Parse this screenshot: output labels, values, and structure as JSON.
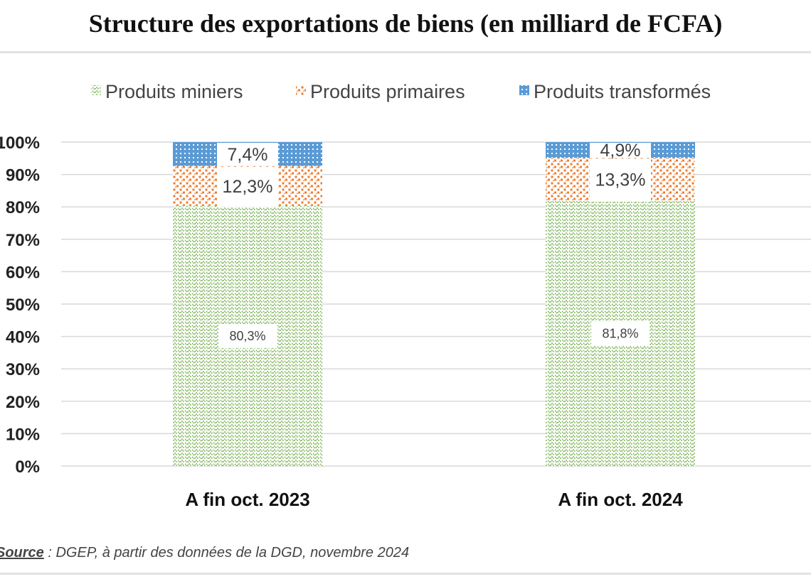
{
  "title": "Structure des exportations de biens (en milliard de FCFA)",
  "source": {
    "label": "Source",
    "text": " : DGEP, à partir des données de la DGD, novembre 2024"
  },
  "chart_data": {
    "type": "bar",
    "stacked": true,
    "percent": true,
    "categories": [
      "A fin oct. 2023",
      "A fin oct. 2024"
    ],
    "series": [
      {
        "name": "Produits miniers",
        "color": "#70ad47",
        "pattern": "zigzag",
        "values": [
          80.3,
          81.8
        ],
        "labels": [
          "80,3%",
          "81,8%"
        ]
      },
      {
        "name": "Produits primaires",
        "color": "#ed7d31",
        "pattern": "dots",
        "values": [
          12.3,
          13.3
        ],
        "labels": [
          "12,3%",
          "13,3%"
        ]
      },
      {
        "name": "Produits transformés",
        "color": "#5b9bd5",
        "pattern": "grid",
        "values": [
          7.4,
          4.9
        ],
        "labels": [
          "7,4%",
          "4,9%"
        ]
      }
    ],
    "y_ticks": [
      "0%",
      "10%",
      "20%",
      "30%",
      "40%",
      "50%",
      "60%",
      "70%",
      "80%",
      "90%",
      "100%"
    ],
    "ylim": [
      0,
      100
    ],
    "grid": true,
    "legend_position": "top"
  }
}
